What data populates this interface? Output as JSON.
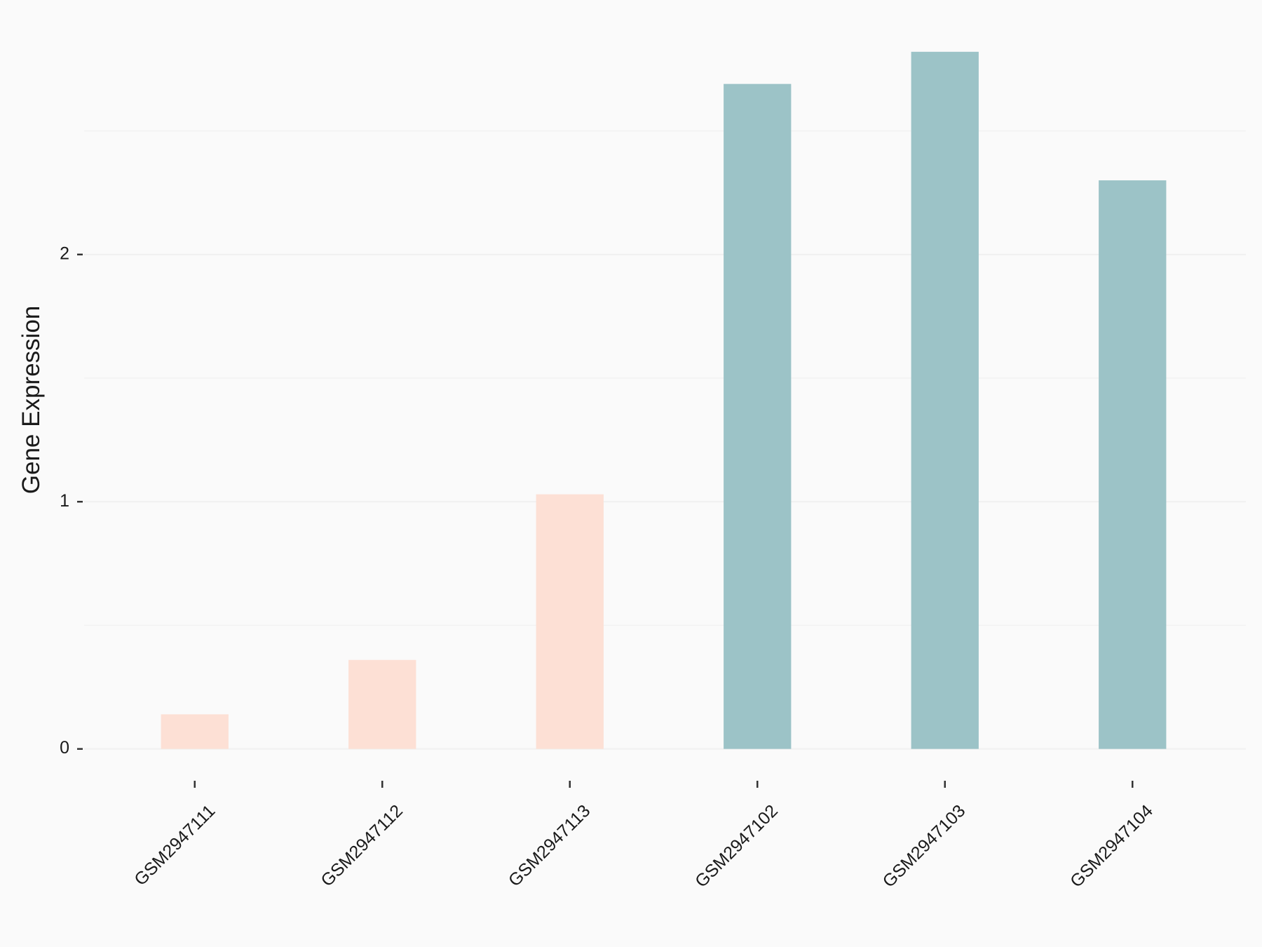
{
  "chart_data": {
    "type": "bar",
    "y_label": "Gene Expression",
    "categories": [
      "GSM2947111",
      "GSM2947112",
      "GSM2947113",
      "GSM2947102",
      "GSM2947103",
      "GSM2947104"
    ],
    "values": [
      0.14,
      0.36,
      1.03,
      2.69,
      2.82,
      2.3
    ],
    "colors": [
      "#fde0d5",
      "#fde0d5",
      "#fde0d5",
      "#9cc3c7",
      "#9cc3c7",
      "#9cc3c7"
    ],
    "ylim": [
      -0.15,
      2.96
    ],
    "yticks": [
      0,
      1,
      2
    ],
    "minor_yticks": [
      0.5,
      1.5,
      2.5
    ],
    "grid": true
  }
}
